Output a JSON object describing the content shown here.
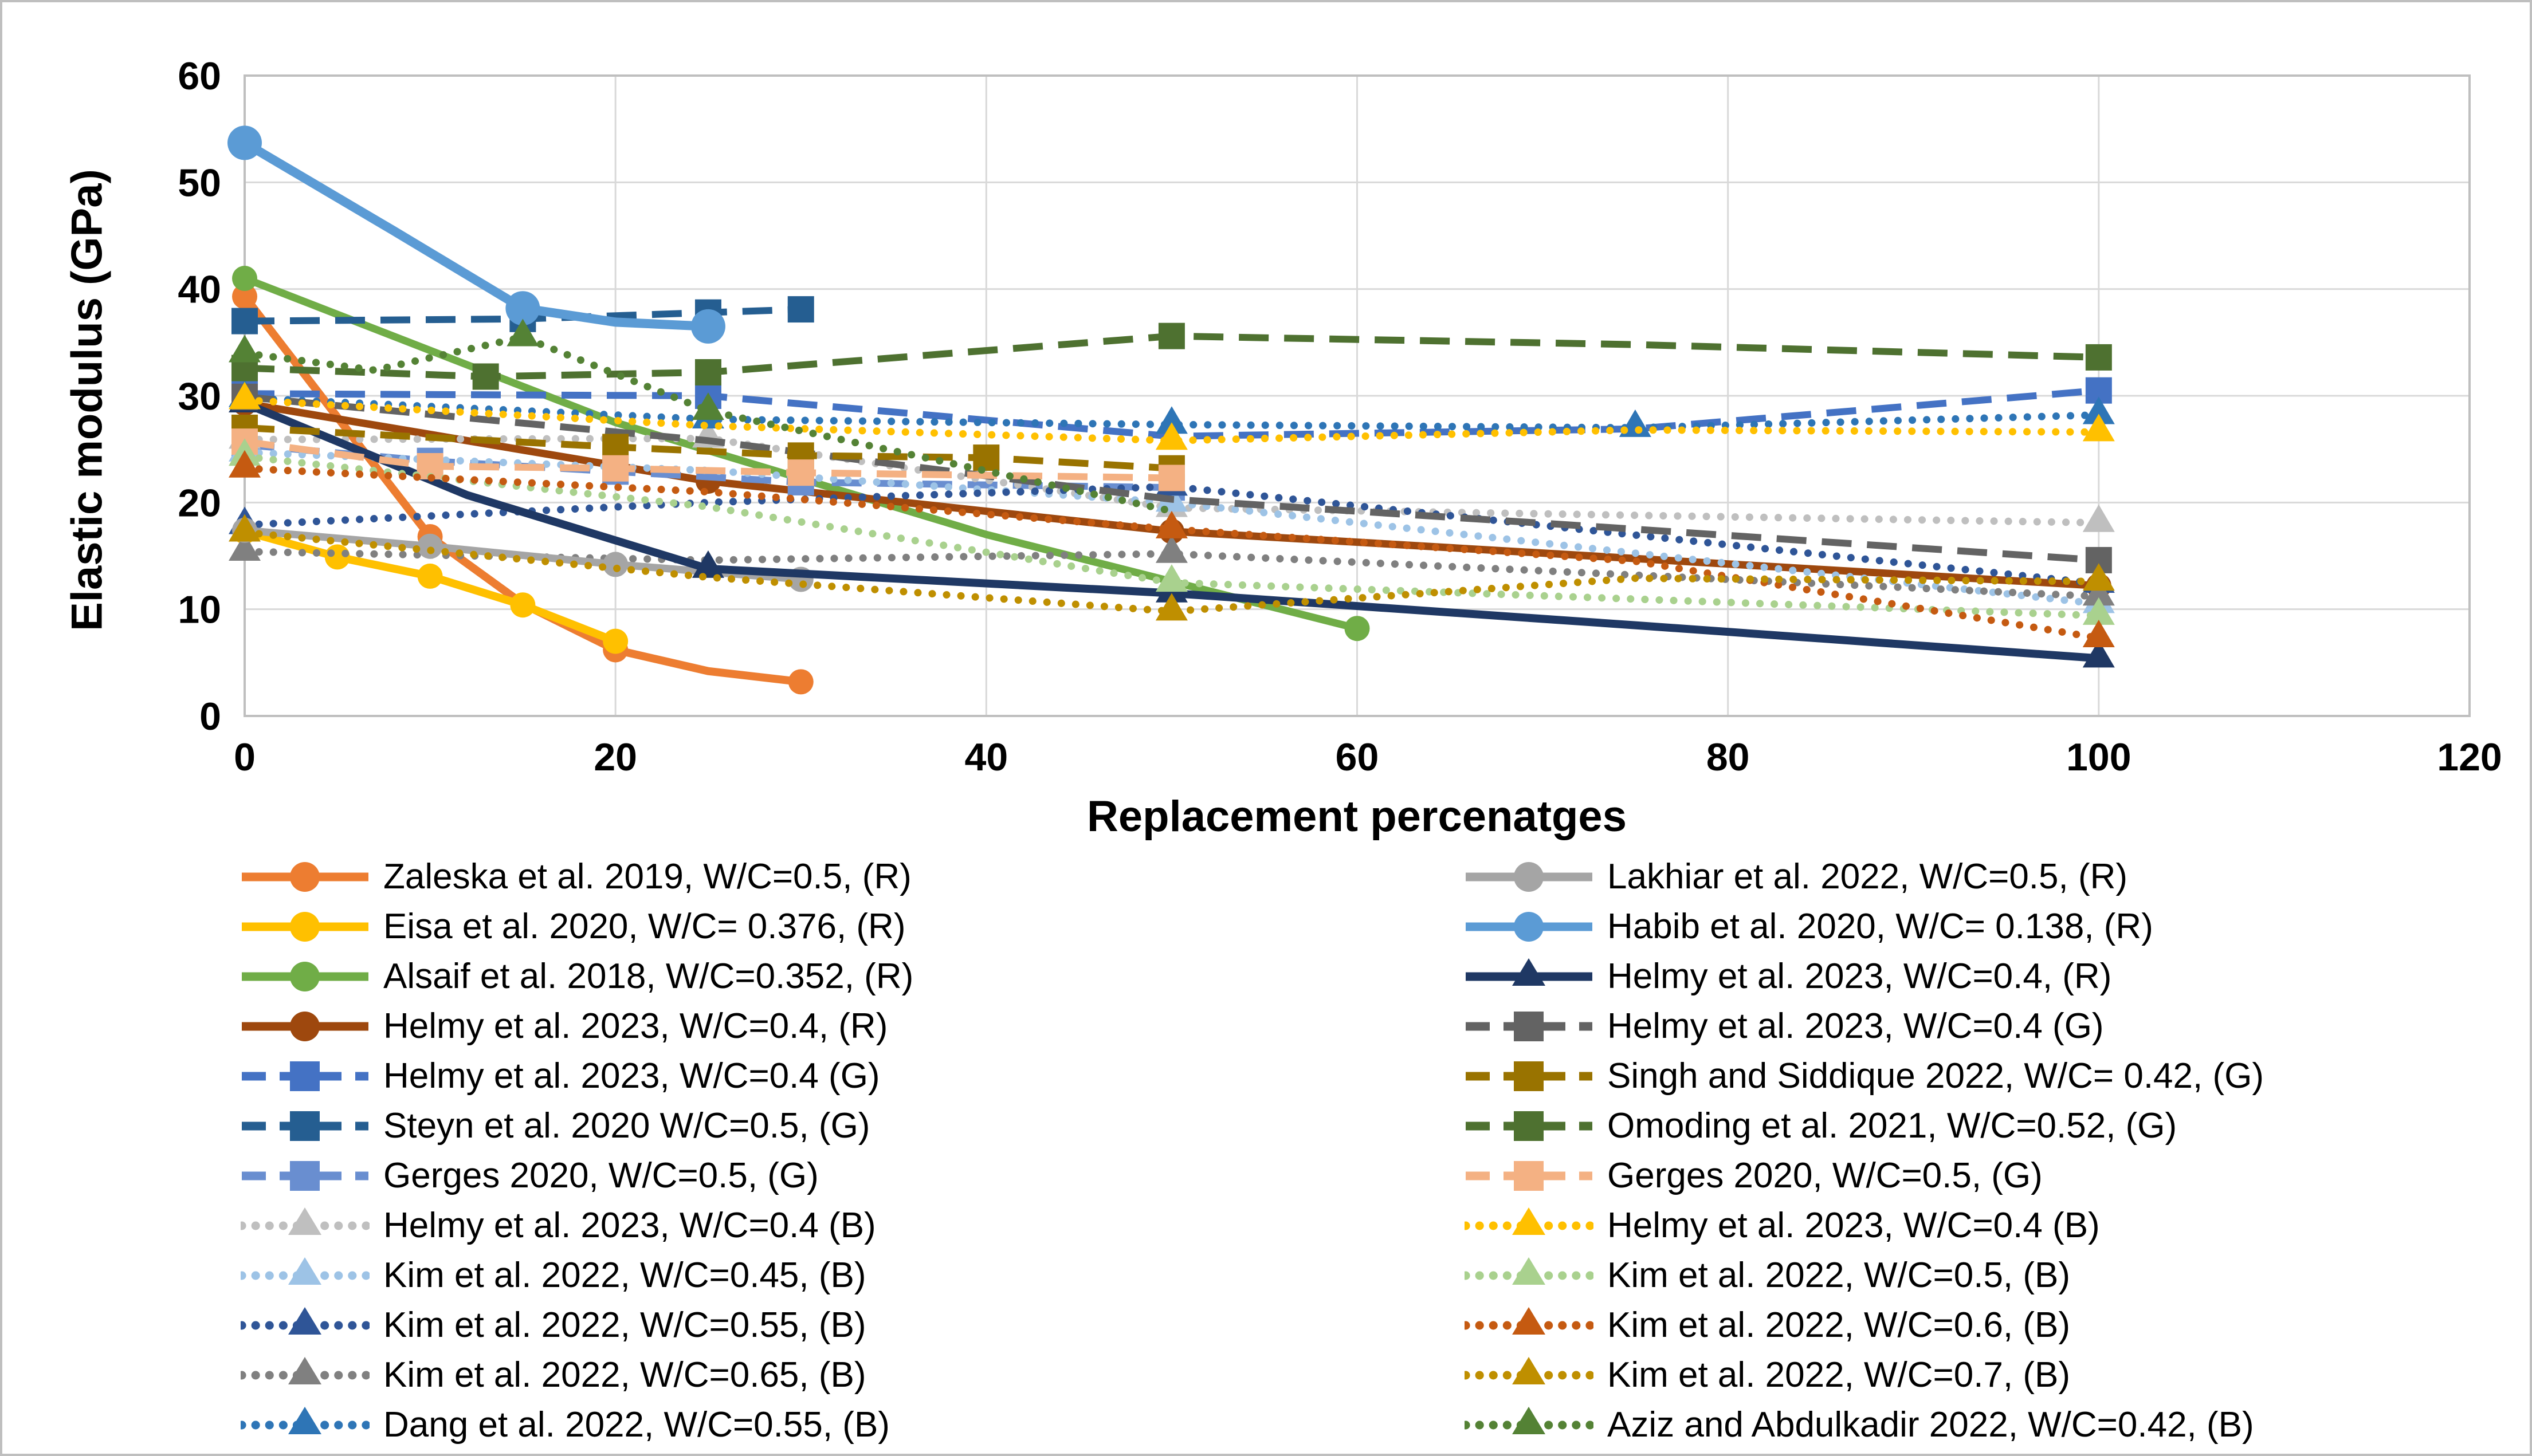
{
  "figure": {
    "background": "#FFFFFF",
    "frame_color": "#BFBFBF"
  },
  "chart_data": {
    "type": "line",
    "title": "",
    "xlabel": "Replacement percenatges",
    "ylabel": "Elastic modulus (GPa)",
    "xlim": [
      0,
      120
    ],
    "ylim": [
      0,
      60
    ],
    "xticks": [
      0,
      20,
      40,
      60,
      80,
      100,
      120
    ],
    "yticks": [
      0,
      10,
      20,
      30,
      40,
      50,
      60
    ],
    "grid": true,
    "grid_color": "#D9D9D9",
    "axis_color": "#BFBFBF",
    "tick_label_color": "#000000",
    "legend_position": "bottom-two-columns",
    "series": [
      {
        "name": "Zaleska et al. 2019, W/C=0.5, (R)",
        "color": "#ED7D31",
        "line": "solid",
        "marker": "circle",
        "column": "left",
        "lw": 14,
        "points": [
          [
            0,
            39.3
          ],
          [
            5,
            28
          ],
          [
            10,
            16.8
          ],
          [
            15,
            10.5
          ],
          [
            20,
            6.2
          ],
          [
            25,
            4.2
          ],
          [
            30,
            3.2
          ]
        ],
        "markers": [
          [
            0,
            39.3
          ],
          [
            10,
            16.8
          ],
          [
            20,
            6.2
          ],
          [
            30,
            3.2
          ]
        ]
      },
      {
        "name": "Eisa et al. 2020, W/C= 0.376, (R)",
        "color": "#FFC000",
        "line": "solid",
        "marker": "circle",
        "column": "left",
        "lw": 14,
        "points": [
          [
            0,
            17.3
          ],
          [
            5,
            14.9
          ],
          [
            10,
            13.1
          ],
          [
            15,
            10.4
          ],
          [
            20,
            7
          ]
        ]
      },
      {
        "name": "Alsaif et al. 2018, W/C=0.352, (R)",
        "color": "#70AD47",
        "line": "solid",
        "marker": "circle",
        "column": "left",
        "lw": 13,
        "points": [
          [
            0,
            41
          ],
          [
            20,
            27.5
          ],
          [
            40,
            17
          ],
          [
            60,
            8.2
          ]
        ],
        "markers": [
          [
            0,
            41
          ],
          [
            60,
            8.2
          ]
        ]
      },
      {
        "name": "Helmy et al. 2023, W/C=0.4, (R)",
        "color": "#9E480E",
        "line": "solid",
        "marker": "circle",
        "column": "left",
        "lw": 13,
        "points": [
          [
            0,
            29.3
          ],
          [
            25,
            22
          ],
          [
            50,
            17.3
          ],
          [
            100,
            12.2
          ]
        ]
      },
      {
        "name": "Helmy et al. 2023, W/C=0.4 (G)",
        "color": "#4472C4",
        "line": "dashed",
        "marker": "square",
        "column": "left",
        "points": [
          [
            0,
            30.2
          ],
          [
            25,
            30
          ],
          [
            50,
            26.2
          ],
          [
            75,
            26.9
          ],
          [
            100,
            30.5
          ]
        ],
        "markers": [
          [
            0,
            30.2
          ],
          [
            25,
            30
          ],
          [
            100,
            30.5
          ]
        ]
      },
      {
        "name": "Steyn et al. 2020 W/C=0.5, (G)",
        "color": "#255E91",
        "line": "dashed",
        "marker": "square",
        "column": "left",
        "points": [
          [
            0,
            37
          ],
          [
            15,
            37.2
          ],
          [
            25,
            37.8
          ],
          [
            30,
            38.1
          ]
        ]
      },
      {
        "name": "Gerges 2020, W/C=0.5, (G)",
        "color": "#698ED0",
        "line": "dashed",
        "marker": "square",
        "column": "left",
        "points": [
          [
            0,
            25.4
          ],
          [
            10,
            23.9
          ],
          [
            20,
            22.9
          ],
          [
            30,
            21.9
          ],
          [
            50,
            21.4
          ]
        ]
      },
      {
        "name": "Helmy et al. 2023, W/C=0.4 (B)",
        "color": "#BFBFBF",
        "line": "dotted",
        "marker": "triangle",
        "column": "left",
        "points": [
          [
            0,
            25.9
          ],
          [
            25,
            26
          ],
          [
            50,
            19.5
          ],
          [
            100,
            18.1
          ]
        ]
      },
      {
        "name": "Kim et al. 2022, W/C=0.45, (B)",
        "color": "#9DC3E6",
        "line": "dotted",
        "marker": "triangle",
        "column": "left",
        "points": [
          [
            0,
            24.7
          ],
          [
            25,
            23
          ],
          [
            50,
            20
          ],
          [
            100,
            10.5
          ]
        ],
        "markers": [
          [
            0,
            24.7
          ],
          [
            50,
            20
          ],
          [
            100,
            10.5
          ]
        ]
      },
      {
        "name": "Kim et al. 2022, W/C=0.55, (B)",
        "color": "#2F5597",
        "line": "dotted",
        "marker": "triangle",
        "column": "left",
        "points": [
          [
            0,
            17.9
          ],
          [
            25,
            20
          ],
          [
            50,
            21.5
          ],
          [
            100,
            12.4
          ]
        ],
        "markers": [
          [
            0,
            17.9
          ],
          [
            50,
            21.5
          ],
          [
            100,
            12.4
          ]
        ]
      },
      {
        "name": "Kim et al. 2022, W/C=0.65, (B)",
        "color": "#808080",
        "line": "dotted",
        "marker": "triangle",
        "column": "left",
        "points": [
          [
            0,
            15.4
          ],
          [
            25,
            14.6
          ],
          [
            50,
            15.2
          ],
          [
            100,
            11.2
          ]
        ],
        "markers": [
          [
            0,
            15.4
          ],
          [
            50,
            15.2
          ],
          [
            100,
            11.2
          ]
        ]
      },
      {
        "name": "Dang et al. 2022, W/C=0.55, (B)",
        "color": "#2E75B6",
        "line": "dotted",
        "marker": "triangle",
        "column": "left",
        "points": [
          [
            0,
            29.8
          ],
          [
            25,
            27.8
          ],
          [
            50,
            27.3
          ],
          [
            75,
            27
          ],
          [
            100,
            28.2
          ]
        ]
      },
      {
        "name": "Lakhiar et al. 2022, W/C=0.5, (R)",
        "color": "#A5A5A5",
        "line": "solid",
        "marker": "circle",
        "column": "right",
        "lw": 13,
        "points": [
          [
            0,
            17.4
          ],
          [
            10,
            15.9
          ],
          [
            20,
            14.2
          ],
          [
            30,
            12.8
          ]
        ]
      },
      {
        "name": "Habib et al. 2020, W/C= 0.138, (R)",
        "color": "#5B9BD5",
        "line": "solid",
        "marker": "circle",
        "column": "right",
        "lw": 16,
        "ms": 30,
        "points": [
          [
            0,
            53.7
          ],
          [
            8,
            45.5
          ],
          [
            15,
            38.2
          ],
          [
            20,
            36.9
          ],
          [
            25,
            36.5
          ]
        ],
        "markers": [
          [
            0,
            53.7
          ],
          [
            15,
            38.2
          ],
          [
            25,
            36.5
          ]
        ]
      },
      {
        "name": "Helmy et al. 2023, W/C=0.4, (R)",
        "color": "#1F3864",
        "line": "solid",
        "marker": "triangle",
        "column": "right",
        "lw": 14,
        "points": [
          [
            0,
            29.3
          ],
          [
            12,
            20.7
          ],
          [
            25,
            13.8
          ],
          [
            50,
            11.5
          ],
          [
            75,
            8.5
          ],
          [
            100,
            5.4
          ]
        ],
        "markers": [
          [
            0,
            29.3
          ],
          [
            25,
            13.8
          ],
          [
            50,
            11.5
          ],
          [
            100,
            5.4
          ]
        ]
      },
      {
        "name": "Helmy et al. 2023, W/C=0.4 (G)",
        "color": "#636363",
        "line": "dashed",
        "marker": "square",
        "column": "right",
        "points": [
          [
            0,
            29.9
          ],
          [
            25,
            25.8
          ],
          [
            50,
            20.3
          ],
          [
            75,
            17.5
          ],
          [
            100,
            14.6
          ]
        ],
        "markers": [
          [
            0,
            29.9
          ],
          [
            100,
            14.6
          ]
        ]
      },
      {
        "name": "Singh and Siddique 2022, W/C= 0.42, (G)",
        "color": "#997300",
        "line": "dashed",
        "marker": "square",
        "column": "right",
        "points": [
          [
            0,
            27
          ],
          [
            20,
            25.2
          ],
          [
            30,
            24.4
          ],
          [
            40,
            24.2
          ],
          [
            50,
            23.2
          ]
        ]
      },
      {
        "name": "Omoding et al. 2021, W/C=0.52, (G)",
        "color": "#4E7130",
        "line": "dashed",
        "marker": "square",
        "column": "right",
        "points": [
          [
            0,
            32.6
          ],
          [
            13,
            31.8
          ],
          [
            25,
            32.2
          ],
          [
            50,
            35.6
          ],
          [
            75,
            34.8
          ],
          [
            100,
            33.6
          ]
        ],
        "markers": [
          [
            0,
            32.6
          ],
          [
            13,
            31.8
          ],
          [
            25,
            32.2
          ],
          [
            50,
            35.6
          ],
          [
            100,
            33.6
          ]
        ]
      },
      {
        "name": "Gerges 2020, W/C=0.5, (G)",
        "color": "#F4B183",
        "line": "dashed",
        "marker": "square",
        "column": "right",
        "points": [
          [
            0,
            25.7
          ],
          [
            10,
            23.4
          ],
          [
            20,
            23.2
          ],
          [
            30,
            22.8
          ],
          [
            50,
            22.3
          ]
        ]
      },
      {
        "name": "Helmy et al. 2023, W/C=0.4 (B)",
        "color": "#FFC000",
        "line": "dotted",
        "marker": "triangle",
        "column": "right",
        "points": [
          [
            0,
            29.6
          ],
          [
            25,
            27.2
          ],
          [
            50,
            25.8
          ],
          [
            75,
            26.8
          ],
          [
            100,
            26.6
          ]
        ],
        "markers": [
          [
            0,
            29.6
          ],
          [
            50,
            25.8
          ],
          [
            100,
            26.6
          ]
        ]
      },
      {
        "name": "Kim et al. 2022, W/C=0.5, (B)",
        "color": "#A9D18E",
        "line": "dotted",
        "marker": "triangle",
        "column": "right",
        "points": [
          [
            0,
            24.3
          ],
          [
            25,
            19.6
          ],
          [
            50,
            12.5
          ],
          [
            100,
            9.4
          ]
        ],
        "markers": [
          [
            0,
            24.3
          ],
          [
            50,
            12.5
          ],
          [
            100,
            9.4
          ]
        ]
      },
      {
        "name": "Kim et al. 2022, W/C=0.6, (B)",
        "color": "#C55A11",
        "line": "dotted",
        "marker": "triangle",
        "column": "right",
        "points": [
          [
            0,
            23.2
          ],
          [
            25,
            21
          ],
          [
            50,
            17.5
          ],
          [
            75,
            14.5
          ],
          [
            100,
            7.3
          ]
        ],
        "markers": [
          [
            0,
            23.2
          ],
          [
            50,
            17.5
          ],
          [
            100,
            7.3
          ]
        ]
      },
      {
        "name": "Kim et al. 2022, W/C=0.7, (B)",
        "color": "#BF8F00",
        "line": "dotted",
        "marker": "triangle",
        "column": "right",
        "points": [
          [
            0,
            17.2
          ],
          [
            25,
            13
          ],
          [
            50,
            9.8
          ],
          [
            75,
            12.9
          ],
          [
            100,
            12.6
          ]
        ],
        "markers": [
          [
            0,
            17.2
          ],
          [
            50,
            9.8
          ],
          [
            100,
            12.6
          ]
        ]
      },
      {
        "name": "Aziz and Abdulkadir 2022, W/C=0.42, (B)",
        "color": "#548235",
        "line": "dotted",
        "marker": "triangle",
        "column": "right",
        "points": [
          [
            0,
            34
          ],
          [
            7,
            32.4
          ],
          [
            15,
            35.5
          ],
          [
            25,
            28.6
          ],
          [
            50,
            19.2
          ]
        ],
        "markers": [
          [
            0,
            34
          ],
          [
            15,
            35.5
          ],
          [
            25,
            28.6
          ]
        ]
      }
    ]
  }
}
